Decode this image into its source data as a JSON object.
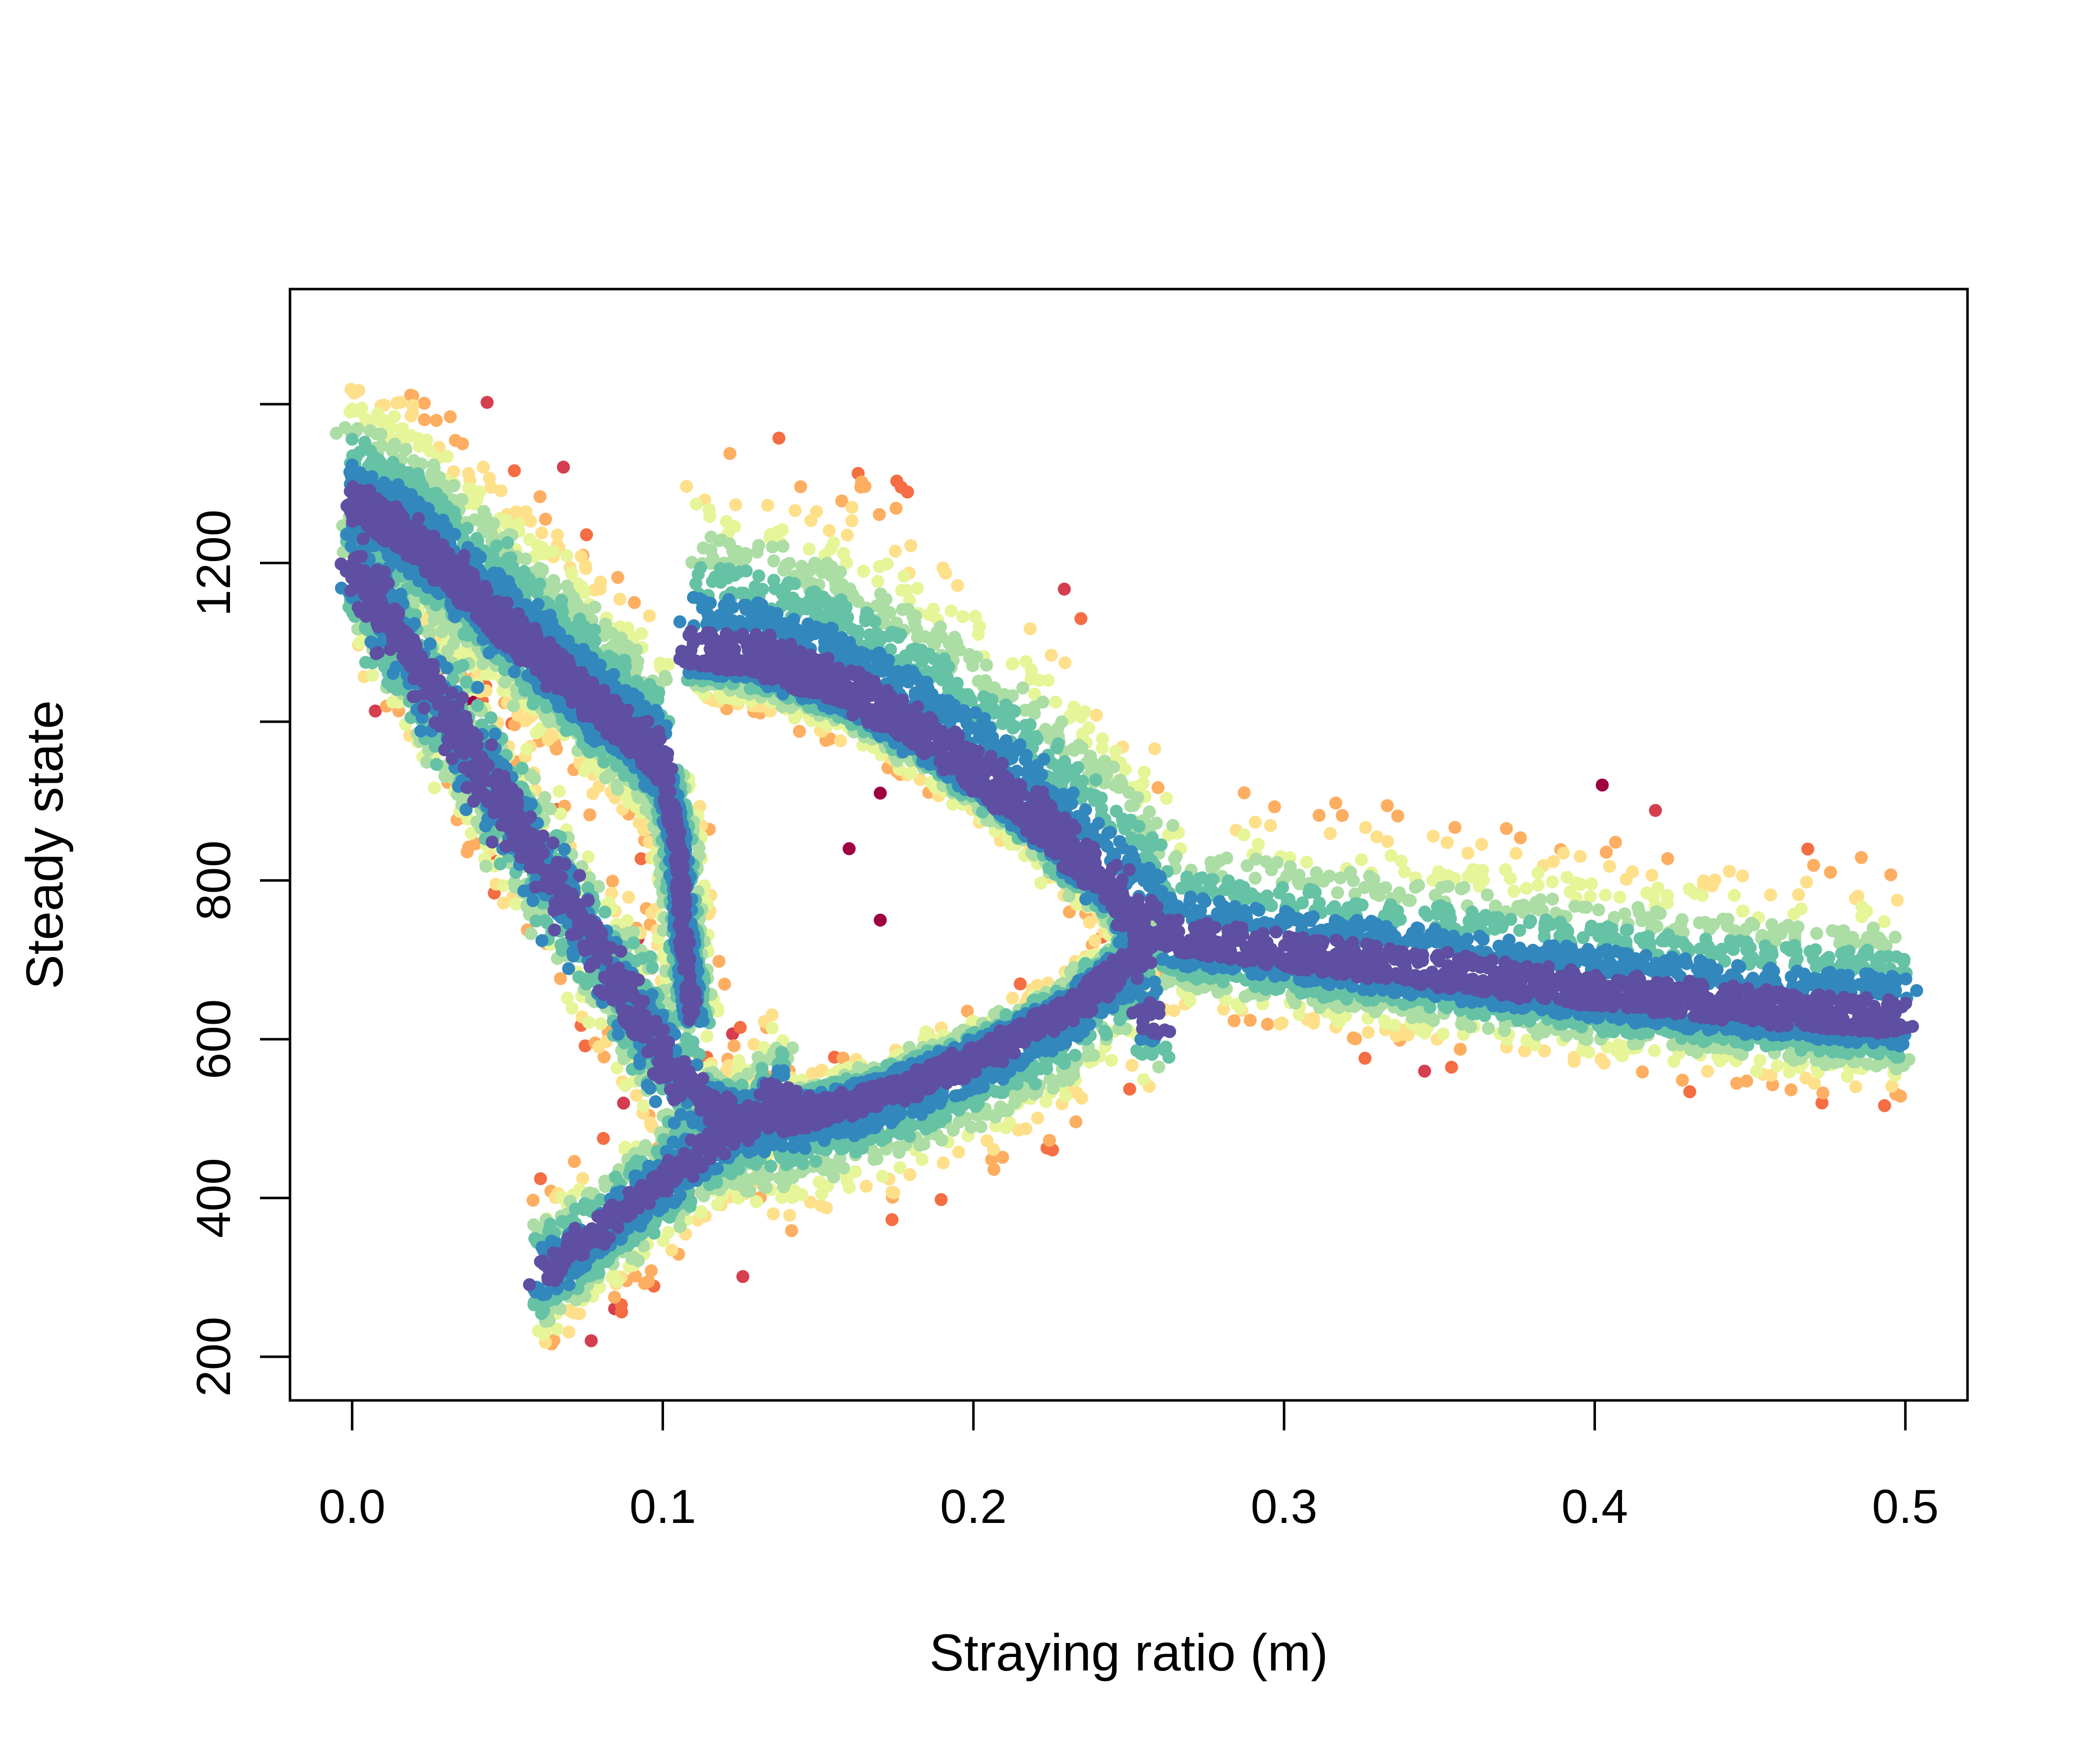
{
  "chart_data": {
    "type": "scatter",
    "title": "",
    "xlabel": "Straying ratio (m)",
    "ylabel": "Steady state",
    "xlim": [
      -0.02,
      0.52
    ],
    "ylim": [
      145,
      1545
    ],
    "x_ticks": [
      0.0,
      0.1,
      0.2,
      0.3,
      0.4,
      0.5
    ],
    "x_tick_labels": [
      "0.0",
      "0.1",
      "0.2",
      "0.3",
      "0.4",
      "0.5"
    ],
    "y_ticks": [
      200,
      400,
      600,
      800,
      1000,
      1200,
      1400
    ],
    "y_tick_labels": [
      "200",
      "400",
      "600",
      "800",
      "",
      "1200",
      ""
    ],
    "grid": false,
    "legend": "none",
    "color_scale": [
      "#5e4fa2",
      "#3288bd",
      "#66c2a5",
      "#abdda4",
      "#e6f598",
      "#fee08b",
      "#fdae61",
      "#f46d43",
      "#d53e4f",
      "#9e0142"
    ],
    "series": [
      {
        "role": "upper-branch",
        "x": [
          0.0,
          0.02,
          0.04,
          0.06,
          0.08,
          0.095,
          0.1
        ],
        "y": [
          1270,
          1225,
          1150,
          1080,
          1010,
          960,
          940
        ]
      },
      {
        "role": "upper-loop-edge",
        "x": [
          0.11,
          0.13,
          0.16,
          0.19,
          0.22,
          0.245,
          0.255
        ],
        "y": [
          1080,
          1070,
          1030,
          960,
          870,
          780,
          735
        ]
      },
      {
        "role": "lower-loop-edge",
        "x": [
          0.255,
          0.23,
          0.2,
          0.17,
          0.14,
          0.125,
          0.115,
          0.11
        ],
        "y": [
          720,
          640,
          580,
          535,
          505,
          500,
          530,
          620
        ]
      },
      {
        "role": "right-branch",
        "x": [
          0.26,
          0.3,
          0.35,
          0.4,
          0.45,
          0.5
        ],
        "y": [
          725,
          705,
          680,
          655,
          635,
          620
        ]
      },
      {
        "role": "vertical-link",
        "x": [
          0.1,
          0.105,
          0.107,
          0.11
        ],
        "y": [
          940,
          840,
          720,
          620
        ]
      }
    ]
  }
}
